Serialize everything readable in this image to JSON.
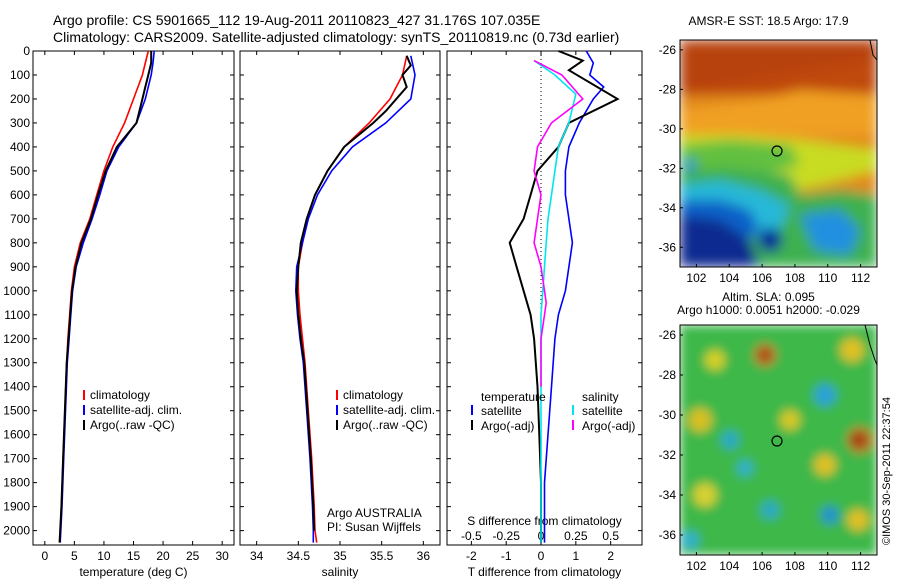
{
  "header": {
    "line1": "Argo profile: CS 5901665_112 19-Aug-2011 20110823_427 31.176S 107.035E",
    "line2": "Climatology: CARS2009. Satellite-adjusted climatology: synTS_20110819.nc (0.73d earlier)"
  },
  "colors": {
    "climatology": "#ff0000",
    "satellite": "#0000ff",
    "argo": "#000000",
    "sal_sat": "#00e5ee",
    "sal_argo": "#ff00ff"
  },
  "chart_data": [
    {
      "type": "line",
      "xlabel": "temperature (deg C)",
      "xlim": [
        -2,
        32
      ],
      "ylim": [
        2060,
        0
      ],
      "xticks": [
        0,
        5,
        10,
        15,
        20,
        25,
        30
      ],
      "yticks": [
        0,
        100,
        200,
        300,
        400,
        500,
        600,
        700,
        800,
        900,
        1000,
        1100,
        1200,
        1300,
        1400,
        1500,
        1600,
        1700,
        1800,
        1900,
        2000
      ],
      "legend": [
        "climatology",
        "satellite-adj. clim.",
        "Argo(..raw -QC)"
      ],
      "series": [
        {
          "name": "climatology",
          "color": "#ff0000",
          "points": [
            [
              17.5,
              0
            ],
            [
              17,
              50
            ],
            [
              16.5,
              100
            ],
            [
              15,
              200
            ],
            [
              13.5,
              300
            ],
            [
              11.5,
              400
            ],
            [
              10,
              500
            ],
            [
              8.8,
              600
            ],
            [
              7.6,
              700
            ],
            [
              6,
              800
            ],
            [
              5,
              900
            ],
            [
              4.5,
              1000
            ],
            [
              4.2,
              1100
            ],
            [
              3.9,
              1200
            ],
            [
              3.7,
              1300
            ],
            [
              3.4,
              1500
            ],
            [
              3.1,
              1700
            ],
            [
              2.8,
              1900
            ],
            [
              2.6,
              2000
            ],
            [
              2.5,
              2050
            ]
          ]
        },
        {
          "name": "satellite-adj. clim.",
          "color": "#0000ff",
          "points": [
            [
              18.5,
              0
            ],
            [
              18.3,
              50
            ],
            [
              18,
              100
            ],
            [
              17,
              200
            ],
            [
              15.5,
              300
            ],
            [
              12.5,
              400
            ],
            [
              10.5,
              500
            ],
            [
              9.3,
              600
            ],
            [
              8,
              700
            ],
            [
              6.5,
              800
            ],
            [
              5.3,
              900
            ],
            [
              4.7,
              1000
            ],
            [
              4.4,
              1100
            ],
            [
              4.1,
              1200
            ],
            [
              3.8,
              1300
            ],
            [
              3.5,
              1500
            ],
            [
              3.2,
              1700
            ],
            [
              2.9,
              1900
            ],
            [
              2.7,
              2000
            ],
            [
              2.6,
              2050
            ]
          ]
        },
        {
          "name": "Argo(..raw -QC)",
          "color": "#000000",
          "points": [
            [
              18,
              0
            ],
            [
              18,
              50
            ],
            [
              17.5,
              100
            ],
            [
              17,
              150
            ],
            [
              16.5,
              200
            ],
            [
              15.5,
              300
            ],
            [
              12.2,
              400
            ],
            [
              10.3,
              500
            ],
            [
              9,
              600
            ],
            [
              7.8,
              700
            ],
            [
              6.2,
              800
            ],
            [
              5.2,
              900
            ],
            [
              4.6,
              1000
            ],
            [
              4.3,
              1100
            ],
            [
              4,
              1200
            ],
            [
              3.7,
              1300
            ],
            [
              3.4,
              1500
            ],
            [
              3.1,
              1700
            ],
            [
              2.8,
              1900
            ],
            [
              2.6,
              2000
            ],
            [
              2.5,
              2050
            ]
          ]
        }
      ]
    },
    {
      "type": "line",
      "xlabel": "salinity",
      "xlim": [
        33.8,
        36.2
      ],
      "ylim": [
        2060,
        0
      ],
      "xticks": [
        34,
        34.5,
        35,
        35.5,
        36
      ],
      "xticklabels": [
        "34",
        "34.5",
        "35",
        "35.5",
        "36"
      ],
      "legend": [
        "climatology",
        "satellite-adj. clim.",
        "Argo(..raw -QC)"
      ],
      "annotation": [
        "Argo AUSTRALIA",
        "PI: Susan Wijffels"
      ],
      "series": [
        {
          "name": "climatology",
          "color": "#ff0000",
          "points": [
            [
              35.8,
              20
            ],
            [
              35.75,
              100
            ],
            [
              35.6,
              200
            ],
            [
              35.35,
              300
            ],
            [
              35.05,
              400
            ],
            [
              34.85,
              500
            ],
            [
              34.7,
              600
            ],
            [
              34.6,
              700
            ],
            [
              34.55,
              800
            ],
            [
              34.5,
              900
            ],
            [
              34.5,
              1000
            ],
            [
              34.52,
              1100
            ],
            [
              34.55,
              1200
            ],
            [
              34.58,
              1300
            ],
            [
              34.62,
              1500
            ],
            [
              34.66,
              1700
            ],
            [
              34.69,
              1900
            ],
            [
              34.7,
              2000
            ],
            [
              34.72,
              2050
            ]
          ]
        },
        {
          "name": "satellite-adj. clim.",
          "color": "#0000ff",
          "points": [
            [
              35.85,
              20
            ],
            [
              35.9,
              100
            ],
            [
              35.85,
              200
            ],
            [
              35.55,
              300
            ],
            [
              35.15,
              400
            ],
            [
              34.9,
              500
            ],
            [
              34.73,
              600
            ],
            [
              34.62,
              700
            ],
            [
              34.55,
              800
            ],
            [
              34.48,
              900
            ],
            [
              34.47,
              1000
            ],
            [
              34.49,
              1100
            ],
            [
              34.52,
              1200
            ],
            [
              34.56,
              1300
            ],
            [
              34.6,
              1500
            ],
            [
              34.64,
              1700
            ],
            [
              34.67,
              1900
            ],
            [
              34.68,
              2000
            ],
            [
              34.68,
              2050
            ]
          ]
        },
        {
          "name": "Argo(..raw -QC)",
          "color": "#000000",
          "points": [
            [
              35.8,
              20
            ],
            [
              35.85,
              60
            ],
            [
              35.75,
              100
            ],
            [
              35.8,
              150
            ],
            [
              35.55,
              250
            ],
            [
              35.4,
              300
            ],
            [
              35.05,
              400
            ],
            [
              34.85,
              500
            ],
            [
              34.7,
              600
            ],
            [
              34.6,
              700
            ],
            [
              34.53,
              800
            ],
            [
              34.5,
              900
            ],
            [
              34.48,
              1000
            ],
            [
              34.5,
              1100
            ],
            [
              34.53,
              1200
            ],
            [
              34.57,
              1300
            ],
            [
              34.61,
              1500
            ],
            [
              34.65,
              1700
            ],
            [
              34.68,
              1900
            ],
            [
              34.69,
              2000
            ]
          ]
        }
      ]
    },
    {
      "type": "line",
      "xlabel": "T difference from climatology",
      "xlabel_top": "S difference from climatology",
      "xlim": [
        -2.7,
        2.9
      ],
      "ylim": [
        2060,
        0
      ],
      "xticks": [
        -2,
        -1,
        0,
        1,
        2
      ],
      "top_ticks": [
        -0.5,
        -0.25,
        0,
        0.25,
        0.5
      ],
      "top_ticklabels": [
        "-0.5",
        "-0.25",
        "0",
        "0.25",
        "0.5"
      ],
      "legend_temperature": [
        "temperature",
        "satellite",
        "Argo(-adj)"
      ],
      "legend_salinity": [
        "salinity",
        "satellite",
        "Argo(-adj)"
      ],
      "series": [
        {
          "name": "temperature satellite",
          "color": "#0000ff",
          "points": [
            [
              1.3,
              0
            ],
            [
              1.5,
              50
            ],
            [
              1.4,
              100
            ],
            [
              1.8,
              150
            ],
            [
              1.5,
              200
            ],
            [
              1.1,
              300
            ],
            [
              0.8,
              400
            ],
            [
              0.7,
              500
            ],
            [
              0.7,
              600
            ],
            [
              0.8,
              700
            ],
            [
              0.9,
              800
            ],
            [
              0.8,
              900
            ],
            [
              0.7,
              1000
            ],
            [
              0.5,
              1100
            ],
            [
              0.4,
              1200
            ],
            [
              0.3,
              1400
            ],
            [
              0.2,
              1600
            ],
            [
              0.1,
              1800
            ],
            [
              0.1,
              2000
            ],
            [
              0.1,
              2050
            ]
          ]
        },
        {
          "name": "temperature Argo(-adj)",
          "color": "#000000",
          "points": [
            [
              0.5,
              0
            ],
            [
              1.2,
              40
            ],
            [
              0.8,
              80
            ],
            [
              2.2,
              200
            ],
            [
              0.8,
              300
            ],
            [
              0.5,
              400
            ],
            [
              -0.1,
              500
            ],
            [
              -0.3,
              600
            ],
            [
              -0.5,
              700
            ],
            [
              -0.9,
              800
            ],
            [
              -0.7,
              900
            ],
            [
              -0.5,
              1000
            ],
            [
              -0.3,
              1100
            ],
            [
              -0.2,
              1200
            ],
            [
              -0.1,
              1400
            ],
            [
              -0.05,
              1600
            ],
            [
              0,
              1800
            ],
            [
              0,
              2000
            ],
            [
              0,
              2050
            ]
          ]
        },
        {
          "name": "salinity satellite",
          "color": "#00e5ee",
          "points": [
            [
              -0.2,
              40
            ],
            [
              0.4,
              100
            ],
            [
              1,
              180
            ],
            [
              0.8,
              300
            ],
            [
              0.5,
              400
            ],
            [
              0.4,
              500
            ],
            [
              0.3,
              600
            ],
            [
              0.2,
              700
            ],
            [
              0.15,
              800
            ],
            [
              0.1,
              900
            ],
            [
              0.05,
              1000
            ],
            [
              0,
              1100
            ],
            [
              0,
              1300
            ],
            [
              0,
              1600
            ],
            [
              0,
              2000
            ],
            [
              0,
              2050
            ]
          ]
        },
        {
          "name": "salinity Argo(-adj)",
          "color": "#ff00ff",
          "points": [
            [
              -0.2,
              40
            ],
            [
              0.6,
              100
            ],
            [
              1.2,
              200
            ],
            [
              0.3,
              300
            ],
            [
              -0.1,
              400
            ],
            [
              -0.2,
              500
            ],
            [
              0,
              600
            ],
            [
              -0.1,
              700
            ],
            [
              -0.2,
              800
            ],
            [
              0,
              900
            ],
            [
              0.1,
              1000
            ],
            [
              0.15,
              1050
            ],
            [
              0.1,
              1100
            ],
            [
              0,
              1200
            ],
            [
              0,
              1400
            ]
          ]
        }
      ]
    },
    {
      "type": "heatmap",
      "title": "AMSR-E SST: 18.5 Argo: 17.9",
      "xlim": [
        101,
        113
      ],
      "ylim": [
        -37,
        -25.5
      ],
      "xticks": [
        102,
        104,
        106,
        108,
        110,
        112
      ],
      "yticks": [
        -26,
        -28,
        -30,
        -32,
        -34,
        -36
      ],
      "marker": [
        107.035,
        -31.176
      ]
    },
    {
      "type": "heatmap",
      "title_lines": [
        "Altim. SLA: 0.095",
        "Argo h1000: 0.0051 h2000: -0.029"
      ],
      "xlim": [
        101,
        113
      ],
      "ylim": [
        -37,
        -25.5
      ],
      "xticks": [
        102,
        104,
        106,
        108,
        110,
        112
      ],
      "yticks": [
        -26,
        -28,
        -30,
        -32,
        -34,
        -36
      ],
      "marker": [
        107.035,
        -31.176
      ]
    }
  ],
  "stamp": "©IMOS 30-Sep-2011 22:37:54"
}
